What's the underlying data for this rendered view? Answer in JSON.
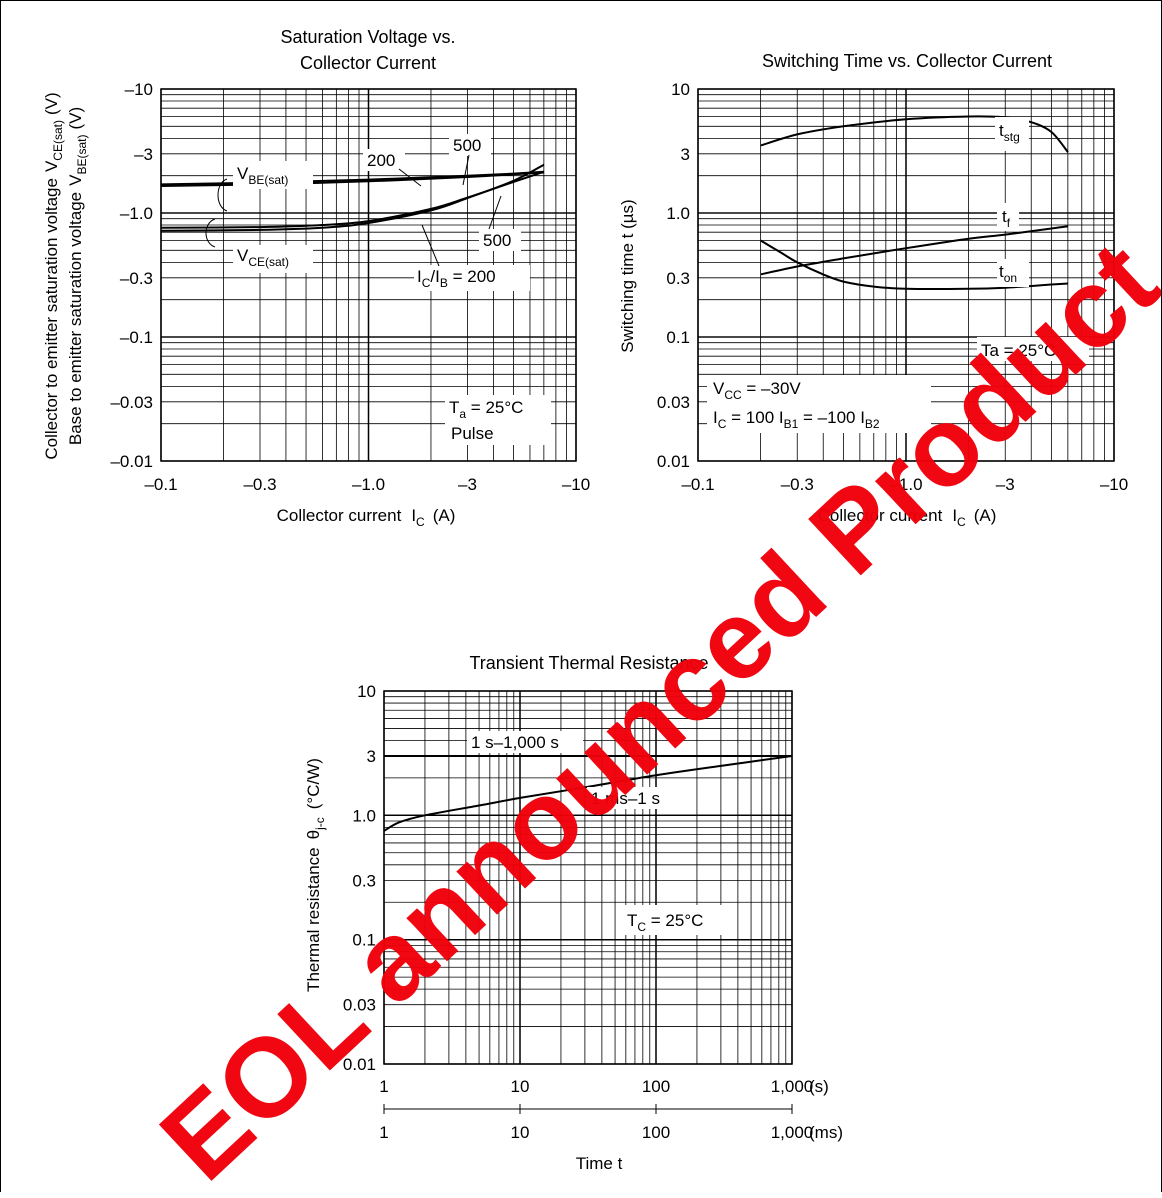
{
  "watermark": "EOL announced Product",
  "colors": {
    "watermark": "#f0000a",
    "line": "#000000",
    "background": "#ffffff"
  },
  "chart_data": [
    {
      "type": "line",
      "title_lines": [
        "Saturation Voltage vs.",
        "Collector Current"
      ],
      "xlabel": "Collector current",
      "xlabel_symbol": "I",
      "xlabel_sub": "C",
      "xlabel_unit": "(A)",
      "ylabel_lines": [
        {
          "text": "Collector to emitter saturation voltage",
          "sym": "V",
          "sub": "CE(sat)",
          "unit": "(V)"
        },
        {
          "text": "Base to emitter saturation voltage",
          "sym": "V",
          "sub": "BE(sat)",
          "unit": "(V)"
        }
      ],
      "x_scale": "log",
      "y_scale": "log",
      "xlim": [
        -0.1,
        -10
      ],
      "ylim": [
        -0.01,
        -10
      ],
      "x_ticks": [
        "–0.1",
        "–0.3",
        "–1.0",
        "–3",
        "–10"
      ],
      "y_ticks": [
        "–10",
        "–3",
        "–1.0",
        "–0.3",
        "–0.1",
        "–0.03",
        "–0.01"
      ],
      "grid": true,
      "series": [
        {
          "group": "V_BE(sat)",
          "ratio": "200",
          "x": [
            -0.1,
            -0.3,
            -1,
            -3,
            -5,
            -7
          ],
          "y": [
            -1.7,
            -1.76,
            -1.86,
            -2.0,
            -2.08,
            -2.15
          ]
        },
        {
          "group": "V_BE(sat)",
          "ratio": "500",
          "x": [
            -0.1,
            -0.3,
            -1,
            -3,
            -5,
            -7
          ],
          "y": [
            -1.65,
            -1.7,
            -1.8,
            -1.95,
            -2.05,
            -2.12
          ]
        },
        {
          "group": "V_CE(sat)",
          "ratio": "200",
          "x": [
            -0.1,
            -0.3,
            -0.6,
            -1,
            -2,
            -3,
            -5,
            -7
          ],
          "y": [
            -0.72,
            -0.73,
            -0.76,
            -0.83,
            -1.05,
            -1.32,
            -1.82,
            -2.45
          ]
        },
        {
          "group": "V_CE(sat)",
          "ratio": "500",
          "x": [
            -0.1,
            -0.3,
            -0.6,
            -1,
            -2,
            -3,
            -5,
            -7
          ],
          "y": [
            -0.76,
            -0.77,
            -0.8,
            -0.86,
            -1.08,
            -1.33,
            -1.78,
            -2.15
          ]
        }
      ],
      "annotations": {
        "vbe": {
          "sym": "V",
          "sub": "BE(sat)"
        },
        "vce": {
          "sym": "V",
          "sub": "CE(sat)"
        },
        "lbl_200_top": "200",
        "lbl_500_top": "500",
        "lbl_500_bottom": "500",
        "ratio": {
          "sym": "I",
          "sub1": "C",
          "mid": "/I",
          "sub2": "B",
          "tail": " = 200"
        },
        "ta": {
          "sym": "T",
          "sub": "a",
          "tail": " = 25°C"
        },
        "pulse": "Pulse"
      }
    },
    {
      "type": "line",
      "title": "Switching Time vs. Collector Current",
      "xlabel": "Collector current",
      "xlabel_symbol": "I",
      "xlabel_sub": "C",
      "xlabel_unit": "(A)",
      "ylabel": "Switching time  t  (µs)",
      "x_scale": "log",
      "y_scale": "log",
      "xlim": [
        -0.1,
        -10
      ],
      "ylim": [
        0.01,
        10
      ],
      "x_ticks": [
        "–0.1",
        "–0.3",
        "–1.0",
        "–3",
        "–10"
      ],
      "y_ticks": [
        "10",
        "3",
        "1.0",
        "0.3",
        "0.1",
        "0.03",
        "0.01"
      ],
      "grid": true,
      "series": [
        {
          "name": "t_stg",
          "x": [
            -0.2,
            -0.3,
            -0.5,
            -1,
            -2,
            -3,
            -4,
            -5,
            -6
          ],
          "y": [
            3.5,
            4.3,
            5.0,
            5.7,
            6.0,
            5.9,
            5.4,
            4.5,
            3.1
          ]
        },
        {
          "name": "t_f",
          "x": [
            -0.2,
            -0.3,
            -0.5,
            -1,
            -2,
            -3,
            -5,
            -6
          ],
          "y": [
            0.32,
            0.37,
            0.43,
            0.52,
            0.62,
            0.67,
            0.75,
            0.78
          ]
        },
        {
          "name": "t_on",
          "x": [
            -0.2,
            -0.25,
            -0.3,
            -0.4,
            -0.5,
            -0.7,
            -1,
            -2,
            -3,
            -5,
            -6
          ],
          "y": [
            0.6,
            0.48,
            0.4,
            0.32,
            0.28,
            0.255,
            0.245,
            0.245,
            0.25,
            0.265,
            0.27
          ]
        }
      ],
      "annotations": {
        "tstg": {
          "sym": "t",
          "sub": "stg"
        },
        "tf": {
          "sym": "t",
          "sub": "f"
        },
        "ton": {
          "sym": "t",
          "sub": "on"
        },
        "ta": "Ta = 25°C",
        "vcc": {
          "sym": "V",
          "sub": "CC",
          "tail": " = –30V"
        },
        "ic": {
          "sym": "I",
          "sub1": "C",
          "mid": " = 100 I",
          "sub2": "B1",
          "mid2": " = –100 I",
          "sub3": "B2"
        }
      }
    },
    {
      "type": "line",
      "title": "Transient Thermal Resistance",
      "xlabel": "Time  t",
      "ylabel": "Thermal resistance",
      "ylabel_symbol": "θ",
      "ylabel_sub": "j-c",
      "ylabel_unit": "(°C/W)",
      "x_scale": "log",
      "y_scale": "log",
      "xlim": [
        1,
        1000
      ],
      "ylim": [
        0.01,
        10
      ],
      "x_ticks": [
        "1",
        "10",
        "100",
        "1,000"
      ],
      "x_unit_s": "(s)",
      "x_unit_ms": "(ms)",
      "y_ticks": [
        "10",
        "3",
        "1.0",
        "0.3",
        "0.1",
        "0.03",
        "0.01"
      ],
      "grid": true,
      "series": [
        {
          "name": "1 s–1,000 s",
          "x": [
            1,
            1000
          ],
          "y": [
            3,
            3
          ]
        },
        {
          "name": "1 ms–1 s",
          "x": [
            1,
            1.3,
            2,
            5,
            10,
            30,
            100,
            300,
            1000
          ],
          "y": [
            0.75,
            0.88,
            1.0,
            1.2,
            1.38,
            1.68,
            2.1,
            2.5,
            3.0
          ]
        }
      ],
      "annotations": {
        "tc": {
          "sym": "T",
          "sub": "C",
          "tail": " = 25°C"
        }
      }
    }
  ]
}
